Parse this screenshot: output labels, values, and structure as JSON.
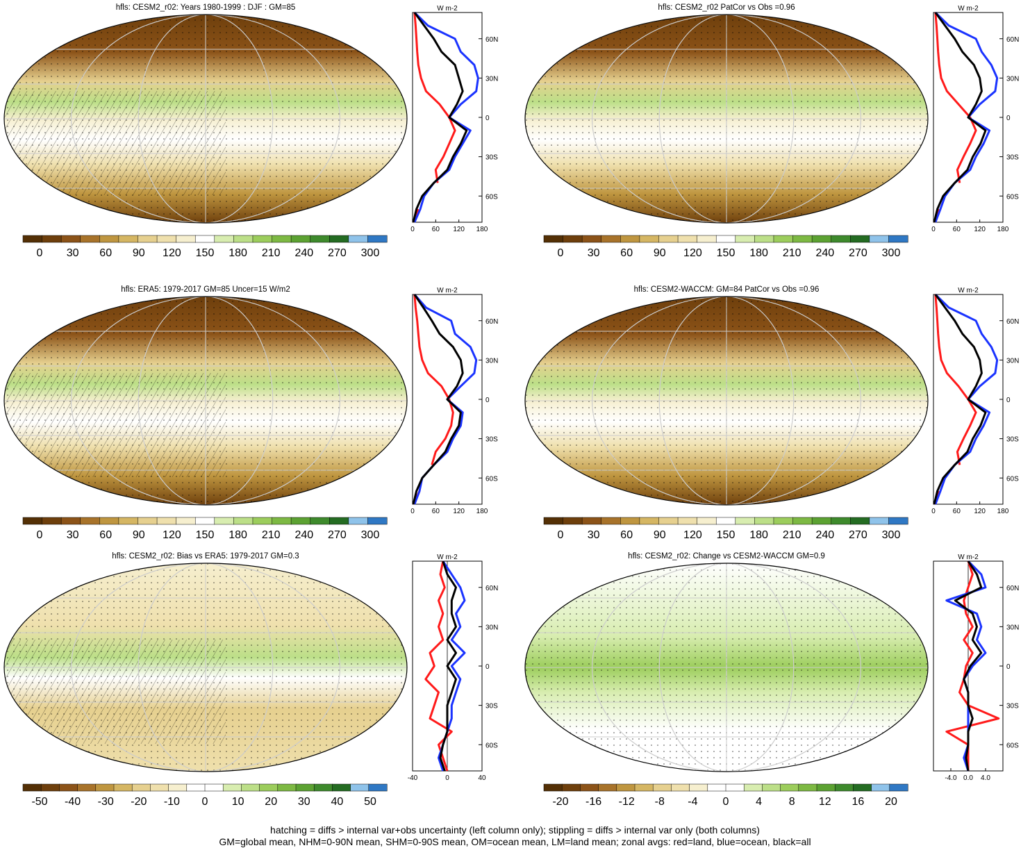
{
  "colors": {
    "abs_scale": [
      "#543005",
      "#6e3f0c",
      "#8c5318",
      "#a8732a",
      "#bf9640",
      "#d5b663",
      "#e6d08f",
      "#efe0ad",
      "#f6efcf",
      "#ffffff",
      "#d8edb0",
      "#bcdf88",
      "#9ccd5c",
      "#7db943",
      "#5ca232",
      "#3e8a2c",
      "#246c22",
      "#8fc3ea",
      "#2f78c4"
    ],
    "diff_scale": [
      "#543005",
      "#6e3f0c",
      "#8c5318",
      "#a8732a",
      "#bf9640",
      "#d5b663",
      "#e6d08f",
      "#efe0ad",
      "#f6efcf",
      "#ffffff",
      "#ffffff",
      "#d8edb0",
      "#bcdf88",
      "#9ccd5c",
      "#7db943",
      "#5ca232",
      "#3e8a2c",
      "#246c22",
      "#8fc3ea",
      "#2f78c4"
    ],
    "land": "#ff1a1a",
    "ocean": "#1a33ff",
    "all": "#000000"
  },
  "chart_data": [
    {
      "type": "map",
      "title": "hfls: CESM2_r02: Years 1980-1999 : DJF : GM=85",
      "colorbar": {
        "ticks": [
          "0",
          "30",
          "60",
          "90",
          "120",
          "150",
          "180",
          "210",
          "240",
          "270",
          "300"
        ]
      },
      "zonal_mean": {
        "type": "line",
        "unit": "W m-2",
        "xticks": [
          "0",
          "60",
          "120",
          "180"
        ],
        "xlim": [
          0,
          180
        ],
        "yticks": [
          "60N",
          "30N",
          "0",
          "30S",
          "60S"
        ],
        "series": [
          {
            "name": "land",
            "lat": [
              80,
              70,
              60,
              50,
              40,
              30,
              20,
              10,
              0,
              -10,
              -20,
              -30,
              -40,
              -50,
              -60,
              -70,
              -80
            ],
            "values": [
              5,
              8,
              10,
              12,
              15,
              22,
              35,
              70,
              95,
              110,
              95,
              80,
              60,
              65,
              null,
              15,
              2
            ]
          },
          {
            "name": "ocean",
            "lat": [
              80,
              70,
              60,
              50,
              40,
              30,
              20,
              10,
              0,
              -10,
              -20,
              -30,
              -40,
              -50,
              -60,
              -70,
              -80
            ],
            "values": [
              5,
              40,
              110,
              125,
              160,
              170,
              165,
              125,
              95,
              150,
              130,
              110,
              95,
              55,
              30,
              20,
              5
            ]
          },
          {
            "name": "all",
            "lat": [
              80,
              70,
              60,
              50,
              40,
              30,
              20,
              10,
              0,
              -10,
              -20,
              -30,
              -40,
              -50,
              -60,
              -70,
              -80
            ],
            "values": [
              5,
              30,
              55,
              75,
              110,
              120,
              130,
              115,
              95,
              140,
              125,
              105,
              90,
              55,
              25,
              10,
              2
            ]
          }
        ]
      }
    },
    {
      "type": "map",
      "title": "hfls: CESM2_r02 PatCor vs Obs =0.96",
      "colorbar": {
        "ticks": [
          "0",
          "30",
          "60",
          "90",
          "120",
          "150",
          "180",
          "210",
          "240",
          "270",
          "300"
        ]
      },
      "zonal_mean": {
        "type": "line",
        "unit": "W m-2",
        "xticks": [
          "0",
          "60",
          "120",
          "180"
        ],
        "xlim": [
          0,
          180
        ],
        "yticks": [
          "60N",
          "30N",
          "0",
          "30S",
          "60S"
        ],
        "series": [
          {
            "name": "land",
            "lat": [
              80,
              70,
              60,
              50,
              40,
              30,
              20,
              10,
              0,
              -10,
              -20,
              -30,
              -40,
              -50,
              -60,
              -70,
              -80
            ],
            "values": [
              5,
              8,
              10,
              12,
              15,
              20,
              35,
              65,
              95,
              110,
              95,
              78,
              62,
              68,
              null,
              14,
              2
            ]
          },
          {
            "name": "ocean",
            "lat": [
              80,
              70,
              60,
              50,
              40,
              30,
              20,
              10,
              0,
              -10,
              -20,
              -30,
              -40,
              -50,
              -60,
              -70,
              -80
            ],
            "values": [
              5,
              40,
              110,
              125,
              150,
              165,
              160,
              120,
              90,
              145,
              130,
              110,
              95,
              55,
              30,
              18,
              5
            ]
          },
          {
            "name": "all",
            "lat": [
              80,
              70,
              60,
              50,
              40,
              30,
              20,
              10,
              0,
              -10,
              -20,
              -30,
              -40,
              -50,
              -60,
              -70,
              -80
            ],
            "values": [
              5,
              30,
              55,
              75,
              105,
              120,
              125,
              110,
              90,
              135,
              122,
              102,
              88,
              55,
              25,
              10,
              2
            ]
          }
        ]
      }
    },
    {
      "type": "map",
      "title": "hfls: ERA5: 1979-2017 GM=85 Uncer=15 W/m2",
      "colorbar": {
        "ticks": [
          "0",
          "30",
          "60",
          "90",
          "120",
          "150",
          "180",
          "210",
          "240",
          "270",
          "300"
        ]
      },
      "zonal_mean": {
        "type": "line",
        "unit": "W m-2",
        "xticks": [
          "0",
          "60",
          "120",
          "180"
        ],
        "xlim": [
          0,
          180
        ],
        "yticks": [
          "60N",
          "30N",
          "0",
          "30S",
          "60S"
        ],
        "series": [
          {
            "name": "land",
            "lat": [
              80,
              70,
              60,
              50,
              40,
              30,
              20,
              10,
              0,
              -10,
              -20,
              -30,
              -40,
              -50,
              -60,
              -70,
              -80
            ],
            "values": [
              5,
              8,
              12,
              15,
              18,
              25,
              40,
              75,
              95,
              105,
              100,
              85,
              60,
              50,
              null,
              18,
              2
            ]
          },
          {
            "name": "ocean",
            "lat": [
              80,
              70,
              60,
              50,
              40,
              30,
              20,
              10,
              0,
              -10,
              -20,
              -30,
              -40,
              -50,
              -60,
              -70,
              -80
            ],
            "values": [
              5,
              35,
              100,
              110,
              150,
              165,
              160,
              125,
              90,
              130,
              125,
              105,
              90,
              55,
              25,
              18,
              5
            ]
          },
          {
            "name": "all",
            "lat": [
              80,
              70,
              60,
              50,
              40,
              30,
              20,
              10,
              0,
              -10,
              -20,
              -30,
              -40,
              -50,
              -60,
              -70,
              -80
            ],
            "values": [
              5,
              28,
              50,
              70,
              105,
              125,
              130,
              115,
              90,
              125,
              120,
              100,
              85,
              55,
              25,
              10,
              2
            ]
          }
        ]
      }
    },
    {
      "type": "map",
      "title": "hfls: CESM2-WACCM: GM=84 PatCor vs Obs =0.96",
      "colorbar": {
        "ticks": [
          "0",
          "30",
          "60",
          "90",
          "120",
          "150",
          "180",
          "210",
          "240",
          "270",
          "300"
        ]
      },
      "zonal_mean": {
        "type": "line",
        "unit": "W m-2",
        "xticks": [
          "0",
          "60",
          "120",
          "180"
        ],
        "xlim": [
          0,
          180
        ],
        "yticks": [
          "60N",
          "30N",
          "0",
          "30S",
          "60S"
        ],
        "series": [
          {
            "name": "land",
            "lat": [
              80,
              70,
              60,
              50,
              40,
              30,
              20,
              10,
              0,
              -10,
              -20,
              -30,
              -40,
              -50,
              -60,
              -70,
              -80
            ],
            "values": [
              5,
              8,
              10,
              12,
              15,
              20,
              35,
              65,
              90,
              110,
              95,
              78,
              62,
              68,
              null,
              14,
              2
            ]
          },
          {
            "name": "ocean",
            "lat": [
              80,
              70,
              60,
              50,
              40,
              30,
              20,
              10,
              0,
              -10,
              -20,
              -30,
              -40,
              -50,
              -60,
              -70,
              -80
            ],
            "values": [
              5,
              40,
              110,
              125,
              150,
              165,
              160,
              120,
              90,
              145,
              130,
              110,
              95,
              55,
              30,
              18,
              5
            ]
          },
          {
            "name": "all",
            "lat": [
              80,
              70,
              60,
              50,
              40,
              30,
              20,
              10,
              0,
              -10,
              -20,
              -30,
              -40,
              -50,
              -60,
              -70,
              -80
            ],
            "values": [
              5,
              30,
              55,
              75,
              105,
              120,
              125,
              110,
              90,
              135,
              122,
              102,
              88,
              55,
              25,
              10,
              2
            ]
          }
        ]
      }
    },
    {
      "type": "map",
      "title": "hfls: CESM2_r02: Bias vs ERA5: 1979-2017 GM=0.3",
      "colorbar": {
        "ticks": [
          "-50",
          "-40",
          "-30",
          "-20",
          "-10",
          "0",
          "10",
          "20",
          "30",
          "40",
          "50"
        ]
      },
      "zonal_mean": {
        "type": "line",
        "unit": "W m-2",
        "xticks": [
          "-40",
          "0",
          "40"
        ],
        "xlim": [
          -40,
          40
        ],
        "yticks": [
          "60N",
          "30N",
          "0",
          "30S",
          "60S"
        ],
        "series": [
          {
            "name": "land",
            "lat": [
              80,
              70,
              60,
              50,
              40,
              30,
              20,
              10,
              0,
              -10,
              -20,
              -30,
              -40,
              -50,
              -60,
              -70,
              -80
            ],
            "values": [
              -5,
              -8,
              -3,
              -10,
              -5,
              -10,
              -5,
              -20,
              -15,
              -25,
              -10,
              -15,
              -20,
              5,
              -10,
              -5,
              0
            ]
          },
          {
            "name": "ocean",
            "lat": [
              80,
              70,
              60,
              50,
              40,
              30,
              20,
              10,
              0,
              -10,
              -20,
              -30,
              -40,
              -50,
              -60,
              -70,
              -80
            ],
            "values": [
              -5,
              5,
              15,
              20,
              10,
              15,
              5,
              20,
              5,
              15,
              10,
              5,
              5,
              0,
              -5,
              -10,
              -5
            ]
          },
          {
            "name": "all",
            "lat": [
              80,
              70,
              60,
              50,
              40,
              30,
              20,
              10,
              0,
              -10,
              -20,
              -30,
              -40,
              -50,
              -60,
              -70,
              -80
            ],
            "values": [
              -5,
              0,
              10,
              5,
              5,
              10,
              0,
              10,
              0,
              10,
              5,
              0,
              0,
              0,
              -5,
              -8,
              -3
            ]
          }
        ]
      }
    },
    {
      "type": "map",
      "title": "hfls: CESM2_r02: Change vs CESM2-WACCM GM=0.9",
      "colorbar": {
        "ticks": [
          "-20",
          "-16",
          "-12",
          "-8",
          "-4",
          "0",
          "4",
          "8",
          "12",
          "16",
          "20"
        ]
      },
      "zonal_mean": {
        "type": "line",
        "unit": "W m-2",
        "xticks": [
          "-4.0",
          "0.0",
          "4.0"
        ],
        "xlim": [
          -8,
          8
        ],
        "yticks": [
          "60N",
          "30N",
          "0",
          "30S",
          "60S"
        ],
        "series": [
          {
            "name": "land",
            "lat": [
              80,
              70,
              60,
              50,
              40,
              30,
              20,
              10,
              0,
              -10,
              -20,
              -30,
              -40,
              -50,
              -60,
              -70,
              -80
            ],
            "values": [
              0,
              1,
              0,
              -1,
              -0.5,
              1,
              -1,
              1,
              -0.5,
              -1,
              -2,
              0,
              7,
              -5,
              0,
              0,
              0
            ]
          },
          {
            "name": "ocean",
            "lat": [
              80,
              70,
              60,
              50,
              40,
              30,
              20,
              10,
              0,
              -10,
              -20,
              -30,
              -40,
              -50,
              -60,
              -70,
              -80
            ],
            "values": [
              0,
              3,
              4,
              -5,
              2,
              3,
              2,
              4,
              1,
              -1,
              0,
              0,
              0,
              0,
              0,
              -1,
              0
            ]
          },
          {
            "name": "all",
            "lat": [
              80,
              70,
              60,
              50,
              40,
              30,
              20,
              10,
              0,
              -10,
              -20,
              -30,
              -40,
              -50,
              -60,
              -70,
              -80
            ],
            "values": [
              0,
              2,
              3,
              -3,
              1,
              2,
              1,
              3,
              0.5,
              -1,
              0,
              0,
              1,
              0,
              0,
              -0.5,
              0
            ]
          }
        ]
      }
    }
  ],
  "footnote": [
    "hatching = diffs > internal var+obs uncertainty (left column only); stippling = diffs > internal var only (both columns)",
    "GM=global mean, NHM=0-90N mean, SHM=0-90S mean, OM=ocean mean, LM=land mean; zonal avgs: red=land, blue=ocean, black=all"
  ]
}
